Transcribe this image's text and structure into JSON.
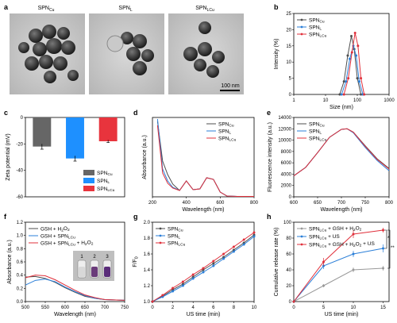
{
  "panels": {
    "a": {
      "letter": "a",
      "images": [
        "SPNCu",
        "SPNL",
        "SPNLCu"
      ],
      "scale_bar": "100 nm"
    },
    "b": {
      "letter": "b"
    },
    "c": {
      "letter": "c"
    },
    "d": {
      "letter": "d"
    },
    "e": {
      "letter": "e"
    },
    "f": {
      "letter": "f",
      "vial_numbers": [
        "1",
        "2",
        "3"
      ]
    },
    "g": {
      "letter": "g"
    },
    "h": {
      "letter": "h",
      "significance": [
        "*",
        "**"
      ]
    }
  },
  "chart_data": [
    {
      "id": "b",
      "type": "line",
      "xlabel": "Size (nm)",
      "ylabel": "Intensity (%)",
      "xscale": "log",
      "xlim": [
        1,
        1000
      ],
      "ylim": [
        0,
        25
      ],
      "xticks": [
        "1",
        "10",
        "100",
        "1000"
      ],
      "yticks": [
        "0",
        "5",
        "10",
        "15",
        "20",
        "25"
      ],
      "legend_position": "top-left",
      "series": [
        {
          "name": "SPNCu",
          "color": "#4d4d4d",
          "x": [
            28,
            38,
            50,
            65,
            80,
            100,
            130
          ],
          "y": [
            0,
            4,
            12,
            18,
            14,
            5,
            0
          ]
        },
        {
          "name": "SPNL",
          "color": "#2b7fd8",
          "x": [
            32,
            44,
            58,
            75,
            92,
            115,
            150
          ],
          "y": [
            0,
            4,
            11,
            15,
            12,
            4,
            0
          ]
        },
        {
          "name": "SPNLCu",
          "color": "#e0303b",
          "x": [
            38,
            52,
            68,
            85,
            105,
            130,
            165
          ],
          "y": [
            0,
            5,
            13,
            19,
            15,
            5,
            0
          ]
        }
      ]
    },
    {
      "id": "c",
      "type": "bar",
      "ylabel": "Zeta potential (mV)",
      "ylim": [
        -60,
        0
      ],
      "yticks": [
        "0",
        "-20",
        "-40",
        "-60"
      ],
      "legend_position": "bottom-right",
      "categories": [
        "SPNCu",
        "SPNL",
        "SPNLCu"
      ],
      "values": [
        -22,
        -31,
        -18
      ],
      "errors": [
        2,
        2,
        1
      ],
      "colors": [
        "#666666",
        "#1e90ff",
        "#e8343d"
      ]
    },
    {
      "id": "d",
      "type": "line",
      "xlabel": "Wavelength (nm)",
      "ylabel": "Absorbance (a.u.)",
      "xlim": [
        200,
        800
      ],
      "xticks": [
        "200",
        "400",
        "600",
        "800"
      ],
      "legend_position": "top-right",
      "series": [
        {
          "name": "SPNCu",
          "color": "#4d4d4d",
          "x": [
            230,
            260,
            290,
            320,
            360,
            400,
            440,
            480,
            520,
            560,
            600,
            640,
            700,
            800
          ],
          "y": [
            0.95,
            0.45,
            0.28,
            0.16,
            0.08,
            0.2,
            0.09,
            0.1,
            0.24,
            0.22,
            0.06,
            0.01,
            0.005,
            0.005
          ]
        },
        {
          "name": "SPNL",
          "color": "#2b7fd8",
          "x": [
            230,
            260,
            290,
            320,
            360,
            400,
            440,
            480,
            520,
            560,
            600,
            640,
            700,
            800
          ],
          "y": [
            0.98,
            0.35,
            0.2,
            0.12,
            0.08,
            0.2,
            0.09,
            0.1,
            0.24,
            0.22,
            0.06,
            0.01,
            0.005,
            0.005
          ]
        },
        {
          "name": "SPNLCu",
          "color": "#e0303b",
          "x": [
            230,
            260,
            290,
            320,
            360,
            400,
            440,
            480,
            520,
            560,
            600,
            640,
            700,
            800
          ],
          "y": [
            0.9,
            0.3,
            0.17,
            0.11,
            0.08,
            0.2,
            0.09,
            0.1,
            0.24,
            0.22,
            0.06,
            0.01,
            0.005,
            0.005
          ]
        }
      ]
    },
    {
      "id": "e",
      "type": "line",
      "xlabel": "Wavelength (nm)",
      "ylabel": "Fluorescence intensity (a.u.)",
      "xlim": [
        600,
        800
      ],
      "ylim": [
        0,
        14000
      ],
      "xticks": [
        "600",
        "650",
        "700",
        "750",
        "800"
      ],
      "yticks": [
        "0",
        "2000",
        "4000",
        "6000",
        "8000",
        "10000",
        "12000",
        "14000"
      ],
      "legend_position": "top-left",
      "series": [
        {
          "name": "SPNCu",
          "color": "#4d4d4d",
          "x": [
            600,
            625,
            650,
            675,
            700,
            712,
            725,
            750,
            775,
            800
          ],
          "y": [
            3700,
            5200,
            7800,
            10500,
            11900,
            12000,
            11400,
            9000,
            6700,
            5000
          ]
        },
        {
          "name": "SPNL",
          "color": "#2b7fd8",
          "x": [
            600,
            625,
            650,
            675,
            700,
            712,
            725,
            750,
            775,
            800
          ],
          "y": [
            3700,
            5200,
            7800,
            10500,
            11900,
            12000,
            11300,
            8700,
            6400,
            4600
          ]
        },
        {
          "name": "SPNLCu",
          "color": "#e0303b",
          "x": [
            600,
            625,
            650,
            675,
            700,
            712,
            725,
            750,
            775,
            800
          ],
          "y": [
            3700,
            5200,
            7800,
            10500,
            11900,
            12000,
            11400,
            8900,
            6600,
            4900
          ]
        }
      ]
    },
    {
      "id": "f",
      "type": "line",
      "xlabel": "Wavelength (nm)",
      "ylabel": "Absorbance (a.u.)",
      "xlim": [
        500,
        750
      ],
      "ylim": [
        0,
        1.2
      ],
      "xticks": [
        "500",
        "550",
        "600",
        "650",
        "700",
        "750"
      ],
      "yticks": [
        "0.0",
        "0.2",
        "0.4",
        "0.6",
        "0.8",
        "1.0",
        "1.2"
      ],
      "legend_position": "top-left",
      "series": [
        {
          "name": "GSH + H2O2",
          "color": "#4d4d4d",
          "x": [
            500,
            525,
            550,
            575,
            600,
            625,
            650,
            675,
            700,
            750
          ],
          "y": [
            0.37,
            0.38,
            0.35,
            0.29,
            0.21,
            0.14,
            0.08,
            0.05,
            0.03,
            0.02
          ]
        },
        {
          "name": "GSH + SPNLCu",
          "color": "#2b7fd8",
          "x": [
            500,
            525,
            550,
            575,
            600,
            625,
            650,
            675,
            700,
            750
          ],
          "y": [
            0.25,
            0.32,
            0.34,
            0.3,
            0.22,
            0.15,
            0.09,
            0.05,
            0.03,
            0.02
          ]
        },
        {
          "name": "GSH + SPNLCu + H2O2",
          "color": "#e0303b",
          "x": [
            500,
            525,
            550,
            575,
            600,
            625,
            650,
            675,
            700,
            750
          ],
          "y": [
            0.36,
            0.4,
            0.39,
            0.33,
            0.25,
            0.17,
            0.1,
            0.06,
            0.03,
            0.02
          ]
        }
      ]
    },
    {
      "id": "g",
      "type": "line",
      "xlabel": "US time (min)",
      "ylabel": "F/F0",
      "xlim": [
        0,
        10
      ],
      "ylim": [
        1.0,
        2.0
      ],
      "xticks": [
        "0",
        "2",
        "4",
        "6",
        "8",
        "10"
      ],
      "yticks": [
        "1.0",
        "1.2",
        "1.4",
        "1.6",
        "1.8",
        "2.0"
      ],
      "legend_position": "top-left",
      "series": [
        {
          "name": "SPNCu",
          "color": "#4d4d4d",
          "x": [
            0,
            1,
            2,
            3,
            4,
            5,
            6,
            7,
            8,
            9,
            10
          ],
          "y": [
            1.0,
            1.07,
            1.15,
            1.22,
            1.31,
            1.4,
            1.48,
            1.56,
            1.65,
            1.74,
            1.84
          ]
        },
        {
          "name": "SPNL",
          "color": "#2b7fd8",
          "x": [
            0,
            1,
            2,
            3,
            4,
            5,
            6,
            7,
            8,
            9,
            10
          ],
          "y": [
            1.0,
            1.06,
            1.13,
            1.2,
            1.29,
            1.37,
            1.45,
            1.54,
            1.63,
            1.72,
            1.82
          ]
        },
        {
          "name": "SPNLCu",
          "color": "#e0303b",
          "x": [
            0,
            1,
            2,
            3,
            4,
            5,
            6,
            7,
            8,
            9,
            10
          ],
          "y": [
            1.0,
            1.08,
            1.17,
            1.25,
            1.34,
            1.42,
            1.51,
            1.6,
            1.69,
            1.78,
            1.87
          ]
        }
      ]
    },
    {
      "id": "h",
      "type": "line",
      "xlabel": "US time (min)",
      "ylabel": "Cumulative release rate (%)",
      "xlim": [
        0,
        16
      ],
      "ylim": [
        0,
        100
      ],
      "xticks": [
        "0",
        "5",
        "10",
        "15"
      ],
      "yticks": [
        "0",
        "20",
        "40",
        "60",
        "80",
        "100"
      ],
      "legend_position": "top-left",
      "series": [
        {
          "name": "SPNLCu + GSH + H2O2",
          "color": "#999999",
          "x": [
            0,
            5,
            10,
            15
          ],
          "y": [
            0,
            20,
            40,
            42
          ],
          "err": [
            0,
            2,
            3,
            3
          ]
        },
        {
          "name": "SPNLCu + US",
          "color": "#2b7fd8",
          "x": [
            0,
            5,
            10,
            15
          ],
          "y": [
            0,
            45,
            60,
            67
          ],
          "err": [
            0,
            4,
            4,
            5
          ]
        },
        {
          "name": "SPNLCu + GSH + H2O2 + US",
          "color": "#e0303b",
          "x": [
            0,
            5,
            10,
            15
          ],
          "y": [
            0,
            50,
            85,
            90
          ],
          "err": [
            0,
            5,
            5,
            3
          ]
        }
      ]
    }
  ]
}
